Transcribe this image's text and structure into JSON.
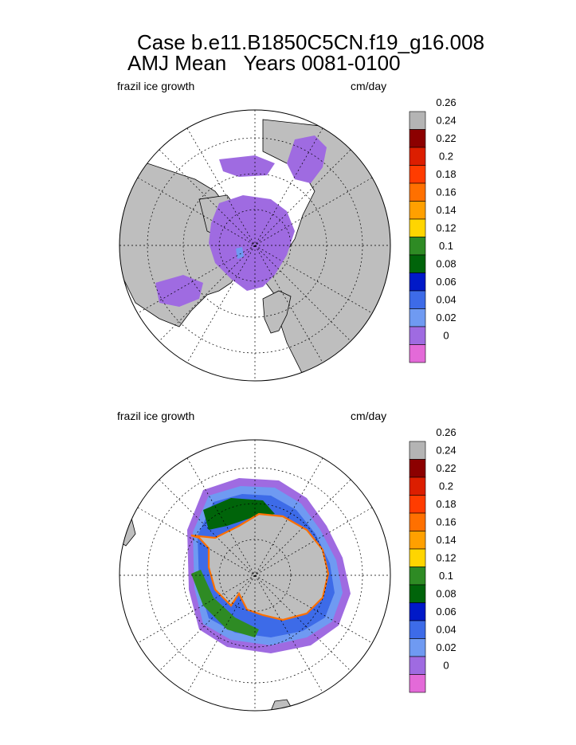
{
  "title": {
    "line1": "Case b.e11.B1850C5CN.f19_g16.008",
    "line2": "AMJ Mean   Years 0081-0100"
  },
  "colors": {
    "land": "#bebebe",
    "missing": "#b4b4b4",
    "levels": [
      "#e36ad8",
      "#9f6be1",
      "#6f9af2",
      "#3d6be8",
      "#0019c8",
      "#00640a",
      "#2e8b24",
      "#ffd500",
      "#ffa000",
      "#ff7000",
      "#ff3c00",
      "#dc1e00",
      "#8c0000"
    ]
  },
  "chart_data": [
    {
      "type": "heatmap",
      "projection": "polar stereographic",
      "hemisphere": "north",
      "left_label": "frazil ice growth",
      "right_label": "cm/day",
      "colorbar_labels": [
        "0",
        "0.02",
        "0.04",
        "0.06",
        "0.08",
        "0.1",
        "0.12",
        "0.14",
        "0.16",
        "0.18",
        "0.2",
        "0.22",
        "0.24",
        "0.26"
      ],
      "value_range": [
        0,
        0.26
      ]
    },
    {
      "type": "heatmap",
      "projection": "polar stereographic",
      "hemisphere": "south",
      "left_label": "frazil ice growth",
      "right_label": "cm/day",
      "colorbar_labels": [
        "0",
        "0.02",
        "0.04",
        "0.06",
        "0.08",
        "0.1",
        "0.12",
        "0.14",
        "0.16",
        "0.18",
        "0.2",
        "0.22",
        "0.24",
        "0.26"
      ],
      "value_range": [
        0,
        0.26
      ]
    }
  ]
}
